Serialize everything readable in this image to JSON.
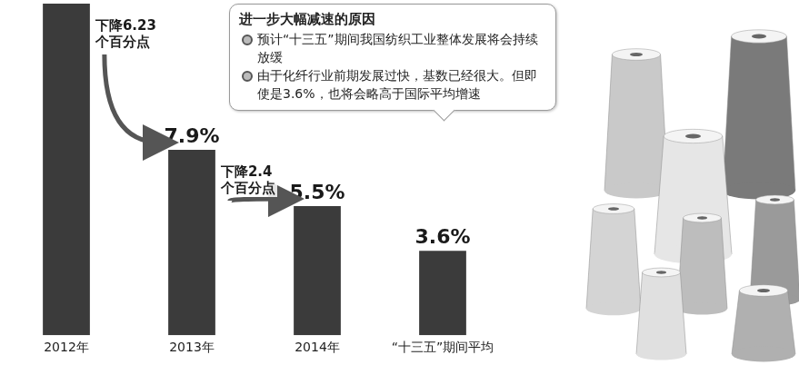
{
  "chart_data": {
    "type": "bar",
    "categories": [
      "2012年",
      "2013年",
      "2014年",
      "“十三五”期间平均"
    ],
    "values": [
      14.13,
      7.9,
      5.5,
      3.6
    ],
    "value_labels": [
      null,
      "7.9%",
      "5.5%",
      "3.6%"
    ],
    "color": "#3b3b3b",
    "data_labels": true,
    "tick_labels": "x",
    "grid": false,
    "annotations": [
      {
        "text": "下降6.23个百分点",
        "from": "2012年",
        "to": "2013年"
      },
      {
        "text": "下降2.4个百分点",
        "from": "2013年",
        "to": "2014年"
      }
    ],
    "callout": {
      "title": "进一步大幅减速的原因",
      "points": [
        "预计“十三五”期间我国纺织工业整体发展将会持续放缓",
        "由于化纤行业前期发展过快，基数已经很大。但即使是3.6%，也将会略高于国际平均增速"
      ],
      "target": "“十三五”期间平均"
    }
  }
}
